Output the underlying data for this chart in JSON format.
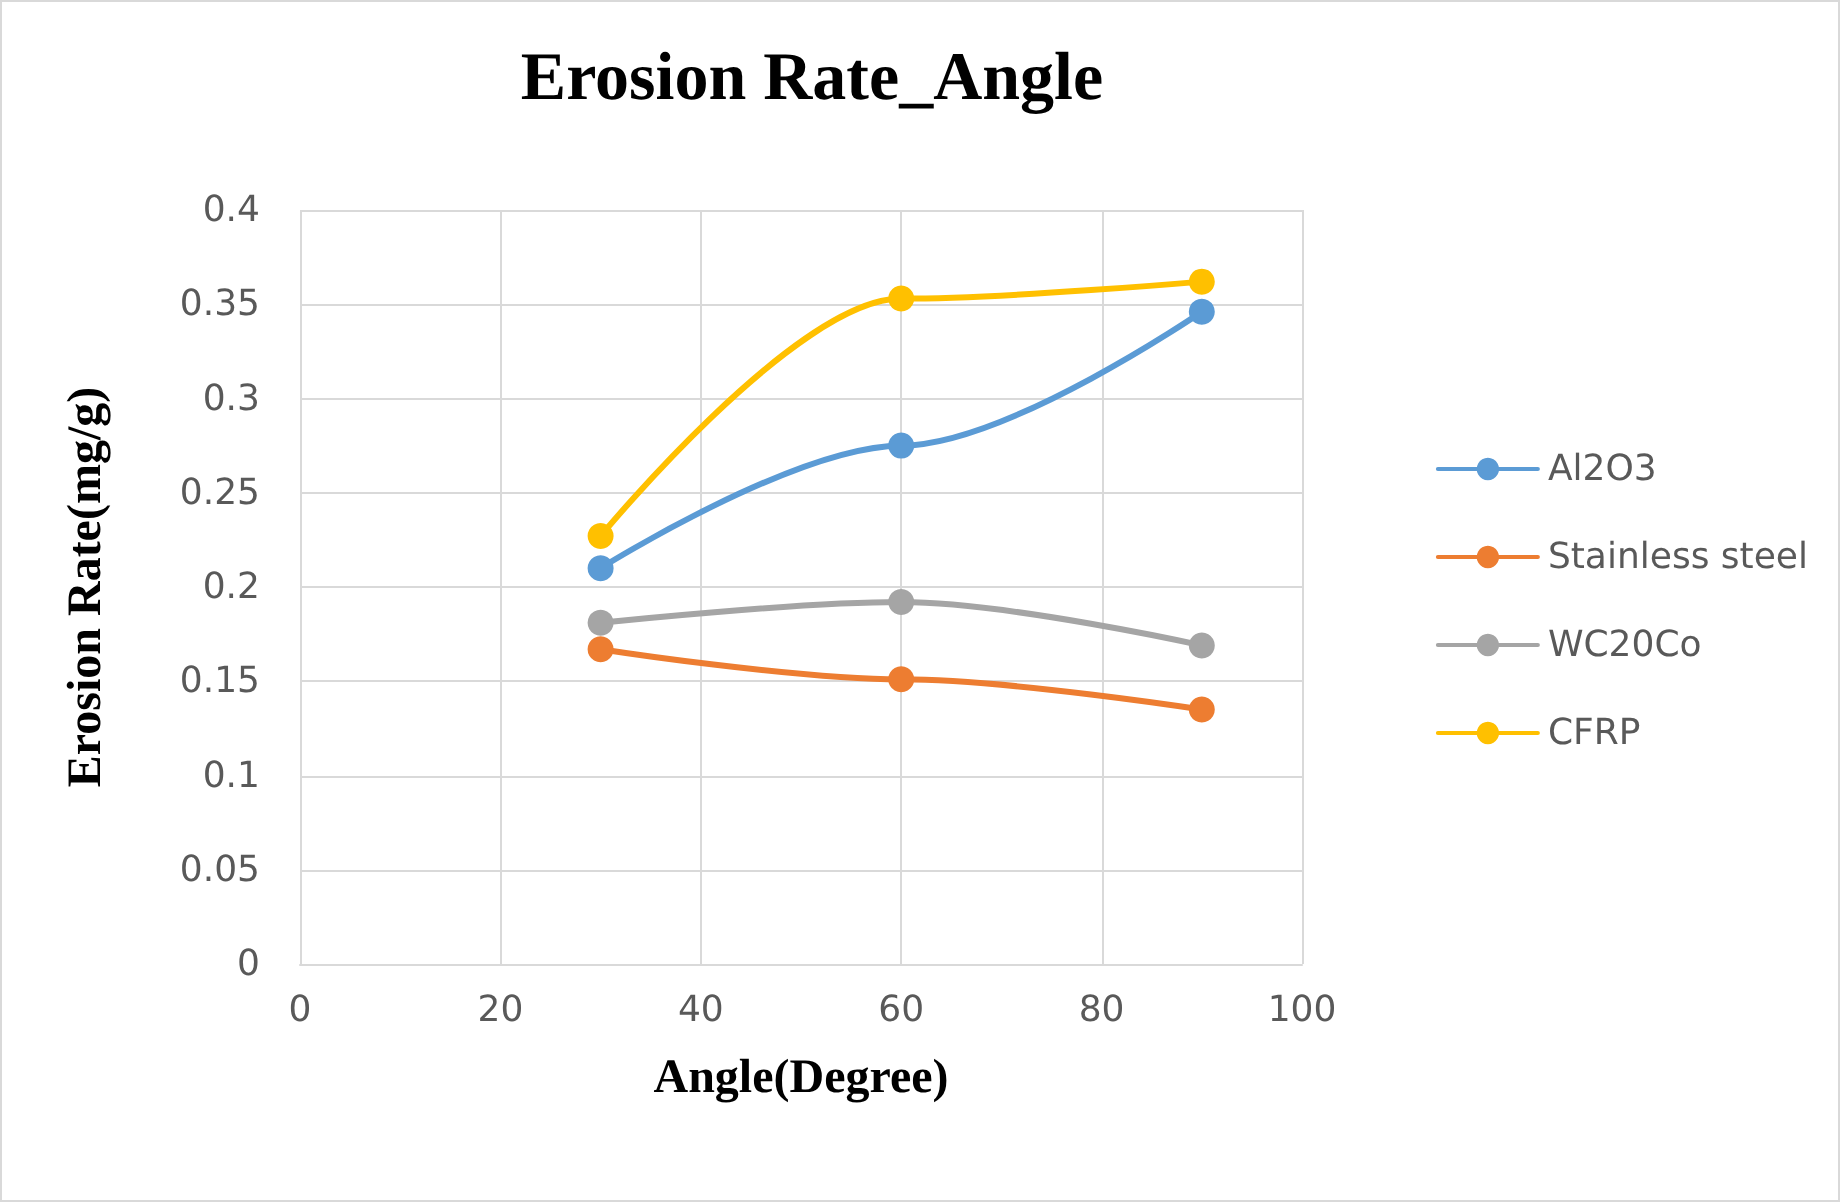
{
  "chart_data": {
    "type": "line",
    "title": "Erosion Rate_Angle",
    "xlabel": "Angle(Degree)",
    "ylabel": "Erosion Rate(mg/g)",
    "x": [
      30,
      60,
      90
    ],
    "series": [
      {
        "name": "Al2O3",
        "color": "#5b9bd5",
        "values": [
          0.21,
          0.275,
          0.346
        ]
      },
      {
        "name": "Stainless steel",
        "color": "#ed7d31",
        "values": [
          0.167,
          0.151,
          0.135
        ]
      },
      {
        "name": "WC20Co",
        "color": "#a5a5a5",
        "values": [
          0.181,
          0.192,
          0.169
        ]
      },
      {
        "name": "CFRP",
        "color": "#ffc000",
        "values": [
          0.227,
          0.353,
          0.362
        ]
      }
    ],
    "xlim": [
      0,
      100
    ],
    "xticks": [
      0,
      20,
      40,
      60,
      80,
      100
    ],
    "ylim": [
      0,
      0.4
    ],
    "yticks": [
      0,
      0.05,
      0.1,
      0.15,
      0.2,
      0.25,
      0.3,
      0.35,
      0.4
    ],
    "grid": true,
    "legend": "right",
    "marker": "circle",
    "line_style": "solid"
  }
}
